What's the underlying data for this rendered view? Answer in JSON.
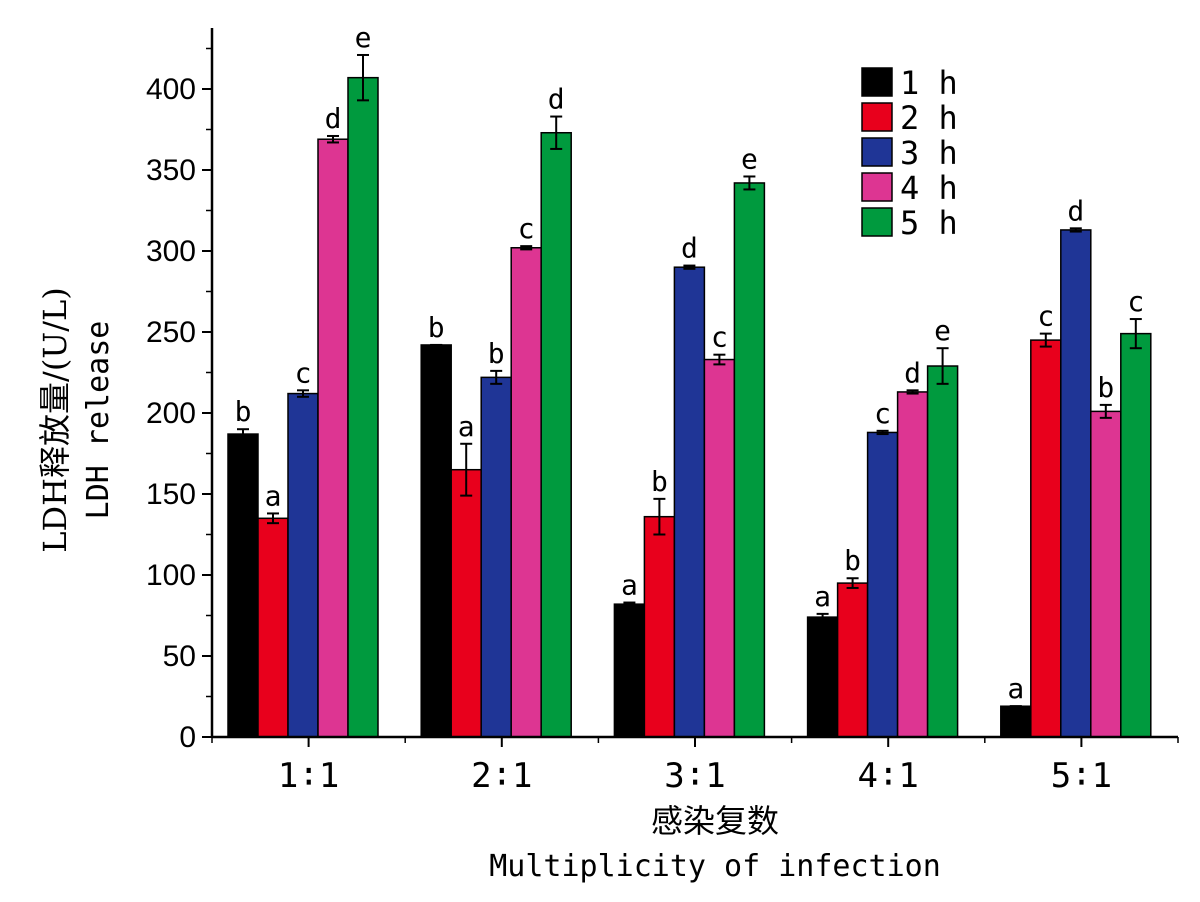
{
  "chart_data": {
    "type": "bar",
    "categories": [
      "1∶1",
      "2∶1",
      "3∶1",
      "4∶1",
      "5∶1"
    ],
    "series": [
      {
        "name": "1 h",
        "color": "#000000",
        "values": [
          187,
          242,
          82,
          74,
          19
        ],
        "errors": [
          3,
          0,
          1,
          2,
          0
        ],
        "letters": [
          "b",
          "b",
          "a",
          "a",
          "a"
        ]
      },
      {
        "name": "2 h",
        "color": "#e8001c",
        "values": [
          135,
          165,
          136,
          95,
          245
        ],
        "errors": [
          3,
          16,
          11,
          3,
          4
        ],
        "letters": [
          "a",
          "a",
          "b",
          "b",
          "c"
        ]
      },
      {
        "name": "3 h",
        "color": "#1f3596",
        "values": [
          212,
          222,
          290,
          188,
          313
        ],
        "errors": [
          2,
          4,
          1,
          1,
          1
        ],
        "letters": [
          "c",
          "b",
          "d",
          "c",
          "d"
        ]
      },
      {
        "name": "4 h",
        "color": "#dd3592",
        "values": [
          369,
          302,
          233,
          213,
          201
        ],
        "errors": [
          2,
          1,
          3,
          1,
          4
        ],
        "letters": [
          "d",
          "c",
          "c",
          "d",
          "b"
        ]
      },
      {
        "name": "5 h",
        "color": "#009a3e",
        "values": [
          407,
          373,
          342,
          229,
          249
        ],
        "errors": [
          14,
          10,
          4,
          11,
          9
        ],
        "letters": [
          "e",
          "d",
          "e",
          "e",
          "c"
        ]
      }
    ],
    "yticks": [
      0,
      50,
      100,
      150,
      200,
      250,
      300,
      350,
      400
    ],
    "ylim": [
      0,
      440
    ],
    "ylabel_cn": "LDH释放量/(U/L)",
    "ylabel_en": "LDH release",
    "xlabel_cn": "感染复数",
    "xlabel_en": "Multiplicity of infection",
    "legend_position": "top-right"
  }
}
